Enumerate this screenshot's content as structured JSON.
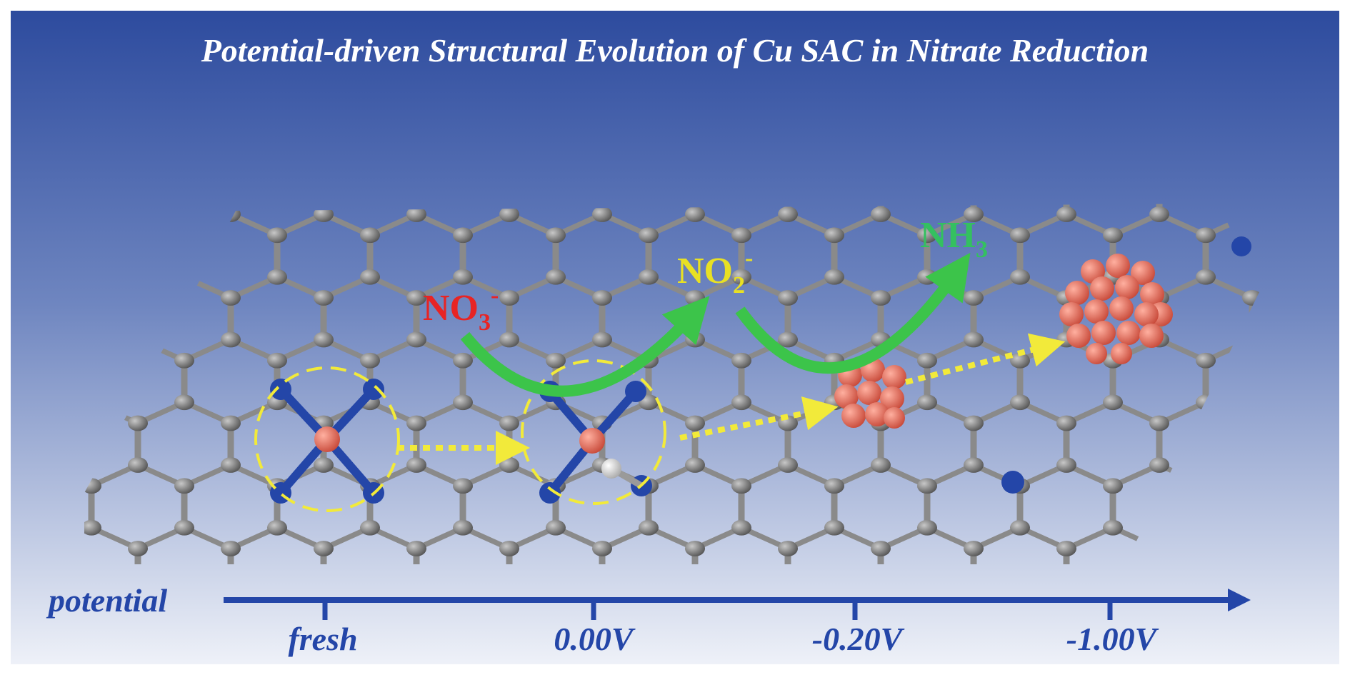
{
  "title": "Potential-driven Structural Evolution of Cu SAC in Nitrate Reduction",
  "species": [
    {
      "formula": "NO",
      "subscript": "3",
      "superscript": "-"
    },
    {
      "formula": "NO",
      "subscript": "2",
      "superscript": "-"
    },
    {
      "formula": "NH",
      "subscript": "3"
    }
  ],
  "axis": {
    "label": "potential",
    "ticks": [
      "fresh",
      "0.00V",
      "-0.20V",
      "-1.00V"
    ]
  }
}
